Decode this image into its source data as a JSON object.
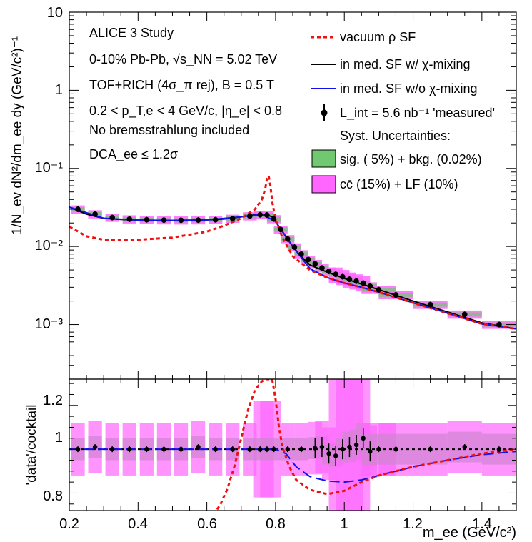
{
  "chart_data": [
    {
      "type": "line",
      "panel": "upper",
      "ylabel": "1/N_ev dN²/dm_ee dy (GeV/c²)⁻¹",
      "yscale": "log",
      "xlim": [
        0.2,
        1.5
      ],
      "ylim": [
        0.0002,
        10
      ],
      "ytick_labels": [
        "10⁻³",
        "10⁻²",
        "10⁻¹",
        "1",
        "10"
      ],
      "ytick_values": [
        0.001,
        0.01,
        0.1,
        1,
        10
      ],
      "annotations": [
        "ALICE 3 Study",
        "0-10% Pb-Pb, √s_NN = 5.02 TeV",
        "TOF+RICH (4σ_π rej), B = 0.5 T",
        "0.2 < p_T,e < 4 GeV/c, |η_e| < 0.8",
        "No bremsstrahlung included",
        "DCA_ee ≤ 1.2σ"
      ],
      "legend": {
        "placement": "top-right",
        "entries": [
          {
            "label": "vacuum ρ SF",
            "style": "dashed",
            "color": "#ee1111"
          },
          {
            "label": "in med. SF w/ χ-mixing",
            "style": "solid",
            "color": "#000000"
          },
          {
            "label": "in med. SF w/o χ-mixing",
            "style": "solid",
            "color": "#1111ee"
          },
          {
            "label": "L_int = 5.6 nb⁻¹ 'measured'",
            "style": "marker",
            "color": "#000000"
          },
          {
            "label": "Syst. Uncertainties:",
            "style": "none"
          },
          {
            "label": "sig. ( 5%) + bkg. (0.02%)",
            "style": "box",
            "color": "#70c870"
          },
          {
            "label": "cc̄ (15%) + LF (10%)",
            "style": "box",
            "color": "#ff66ff"
          }
        ]
      },
      "series": [
        {
          "name": "in med. SF w/ χ-mixing",
          "color": "#000000",
          "x": [
            0.2,
            0.25,
            0.3,
            0.35,
            0.4,
            0.45,
            0.5,
            0.55,
            0.6,
            0.65,
            0.7,
            0.74,
            0.77,
            0.79,
            0.81,
            0.84,
            0.87,
            0.9,
            0.95,
            1.0,
            1.05,
            1.1,
            1.2,
            1.3,
            1.4,
            1.5
          ],
          "y": [
            0.032,
            0.026,
            0.023,
            0.0222,
            0.0218,
            0.0216,
            0.0216,
            0.0217,
            0.0219,
            0.0225,
            0.024,
            0.0255,
            0.0258,
            0.024,
            0.018,
            0.0115,
            0.0078,
            0.0058,
            0.0047,
            0.0039,
            0.0033,
            0.0028,
            0.002,
            0.00145,
            0.00105,
            0.00088
          ]
        },
        {
          "name": "in med. SF w/o χ-mixing",
          "color": "#1111ee",
          "x": [
            0.2,
            0.3,
            0.4,
            0.5,
            0.6,
            0.7,
            0.76,
            0.8,
            0.85,
            0.9,
            0.95,
            1.0,
            1.05,
            1.1,
            1.2,
            1.3,
            1.4,
            1.5
          ],
          "y": [
            0.032,
            0.023,
            0.0218,
            0.0216,
            0.0219,
            0.024,
            0.0258,
            0.021,
            0.01,
            0.0052,
            0.004,
            0.0034,
            0.003,
            0.0026,
            0.0019,
            0.0014,
            0.00102,
            0.00088
          ]
        },
        {
          "name": "vacuum ρ SF",
          "color": "#ee1111",
          "x": [
            0.2,
            0.25,
            0.3,
            0.4,
            0.5,
            0.6,
            0.65,
            0.7,
            0.74,
            0.76,
            0.77,
            0.775,
            0.78,
            0.785,
            0.79,
            0.8,
            0.82,
            0.85,
            0.9,
            0.95,
            1.0,
            1.05,
            1.1,
            1.2,
            1.3,
            1.4,
            1.5
          ],
          "y": [
            0.018,
            0.0135,
            0.0122,
            0.0122,
            0.013,
            0.0155,
            0.0185,
            0.023,
            0.03,
            0.04,
            0.055,
            0.075,
            0.08,
            0.06,
            0.038,
            0.022,
            0.013,
            0.0075,
            0.005,
            0.004,
            0.0034,
            0.003,
            0.0026,
            0.0019,
            0.0014,
            0.00102,
            0.00088
          ]
        },
        {
          "name": "L_int = 5.6 nb⁻¹ 'measured'",
          "color": "#000000",
          "marker": "circle",
          "x": [
            0.225,
            0.275,
            0.325,
            0.375,
            0.425,
            0.475,
            0.525,
            0.575,
            0.625,
            0.675,
            0.725,
            0.755,
            0.775,
            0.795,
            0.815,
            0.835,
            0.855,
            0.875,
            0.895,
            0.915,
            0.935,
            0.955,
            0.975,
            0.995,
            1.015,
            1.035,
            1.055,
            1.075,
            1.1,
            1.15,
            1.25,
            1.35,
            1.45
          ],
          "y": [
            0.03,
            0.026,
            0.0235,
            0.0224,
            0.022,
            0.0218,
            0.0217,
            0.0218,
            0.022,
            0.0228,
            0.0245,
            0.0255,
            0.0253,
            0.0225,
            0.0165,
            0.0125,
            0.0098,
            0.008,
            0.0068,
            0.006,
            0.0053,
            0.0048,
            0.0044,
            0.0041,
            0.0038,
            0.0036,
            0.0034,
            0.0031,
            0.0028,
            0.0024,
            0.0018,
            0.00135,
            0.001
          ]
        }
      ]
    },
    {
      "type": "line",
      "panel": "lower",
      "xlabel": "m_ee (GeV/c²)",
      "ylabel": "'data'/cocktail",
      "xlim": [
        0.2,
        1.5
      ],
      "ylim": [
        0.72,
        1.32
      ],
      "xtick_labels": [
        "0.2",
        "0.4",
        "0.6",
        "0.8",
        "1",
        "1.2",
        "1.4"
      ],
      "xtick_values": [
        0.2,
        0.4,
        0.6,
        0.8,
        1.0,
        1.2,
        1.4
      ],
      "ytick_labels": [
        "0.8",
        "1",
        "1.2"
      ],
      "ytick_values": [
        0.8,
        1.0,
        1.2
      ],
      "series": [
        {
          "name": "in med. SF w/ χ-mixing",
          "color": "#000000",
          "x": [
            0.2,
            0.4,
            0.6,
            0.8,
            1.0,
            1.2,
            1.4,
            1.5
          ],
          "y": [
            1.0,
            1.0,
            1.0,
            1.0,
            1.0,
            1.0,
            1.0,
            1.0
          ]
        },
        {
          "name": "in med. SF w/o χ-mixing",
          "color": "#1111ee",
          "x": [
            0.2,
            0.4,
            0.6,
            0.75,
            0.8,
            0.83,
            0.86,
            0.9,
            0.95,
            1.0,
            1.05,
            1.1,
            1.2,
            1.3,
            1.4,
            1.5
          ],
          "y": [
            1.0,
            1.0,
            1.0,
            1.0,
            1.0,
            0.98,
            0.92,
            0.875,
            0.855,
            0.85,
            0.86,
            0.88,
            0.92,
            0.95,
            0.975,
            0.99
          ]
        },
        {
          "name": "vacuum ρ SF",
          "color": "#ee1111",
          "x": [
            0.62,
            0.64,
            0.66,
            0.68,
            0.7,
            0.72,
            0.74,
            0.76,
            0.77,
            0.78,
            0.79,
            0.8,
            0.81,
            0.82,
            0.84,
            0.86,
            0.9,
            0.95,
            1.0,
            1.05,
            1.1,
            1.2,
            1.3,
            1.4,
            1.5
          ],
          "y": [
            0.7,
            0.75,
            0.82,
            0.92,
            1.05,
            1.18,
            1.27,
            1.31,
            1.32,
            1.32,
            1.32,
            1.23,
            1.1,
            1.01,
            0.92,
            0.86,
            0.815,
            0.795,
            0.81,
            0.85,
            0.88,
            0.92,
            0.95,
            0.98,
            1.0
          ]
        },
        {
          "name": "L_int = 5.6 nb⁻¹ 'measured'",
          "color": "#000000",
          "marker": "circle",
          "x": [
            0.225,
            0.275,
            0.325,
            0.375,
            0.425,
            0.475,
            0.525,
            0.575,
            0.625,
            0.675,
            0.725,
            0.755,
            0.775,
            0.795,
            0.835,
            0.875,
            0.915,
            0.935,
            0.955,
            0.975,
            0.995,
            1.015,
            1.035,
            1.055,
            1.075,
            1.1,
            1.15,
            1.25,
            1.35,
            1.45
          ],
          "y": [
            1.0,
            1.01,
            1.0,
            1.0,
            1.0,
            1.0,
            1.0,
            1.01,
            1.0,
            1.0,
            1.0,
            1.0,
            1.0,
            1.0,
            1.0,
            1.0,
            1.005,
            1.01,
            0.98,
            0.97,
            1.0,
            1.01,
            1.02,
            1.05,
            0.99,
            1.0,
            1.0,
            1.0,
            1.01,
            1.0
          ]
        }
      ]
    }
  ]
}
